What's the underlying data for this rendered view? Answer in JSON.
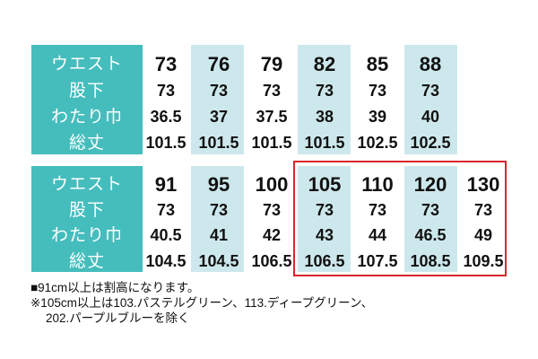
{
  "row_labels": {
    "waist": "ウエスト",
    "inseam": "股下",
    "thigh": "わたり巾",
    "length": "総丈"
  },
  "table_top": {
    "waist": [
      "73",
      "76",
      "79",
      "82",
      "85",
      "88"
    ],
    "inseam": [
      "73",
      "73",
      "73",
      "73",
      "73",
      "73"
    ],
    "thigh": [
      "36.5",
      "37",
      "37.5",
      "38",
      "39",
      "40"
    ],
    "length": [
      "101.5",
      "101.5",
      "101.5",
      "101.5",
      "102.5",
      "102.5"
    ]
  },
  "table_bottom": {
    "waist": [
      "91",
      "95",
      "100",
      "105",
      "110",
      "120",
      "130"
    ],
    "inseam": [
      "73",
      "73",
      "73",
      "73",
      "73",
      "73",
      "73"
    ],
    "thigh": [
      "40.5",
      "41",
      "42",
      "43",
      "44",
      "46.5",
      "49"
    ],
    "length": [
      "104.5",
      "104.5",
      "106.5",
      "106.5",
      "107.5",
      "108.5",
      "109.5"
    ]
  },
  "notes": [
    "■91cm以上は割高になります。",
    "※105cm以上は103.パステルグリーン、113.ディープグリーン、",
    "202.パープルブルーを除く"
  ],
  "colors": {
    "label_bg": "#45bdbd",
    "column_shade": "#cde8ec",
    "highlight_border": "#d9262c"
  }
}
